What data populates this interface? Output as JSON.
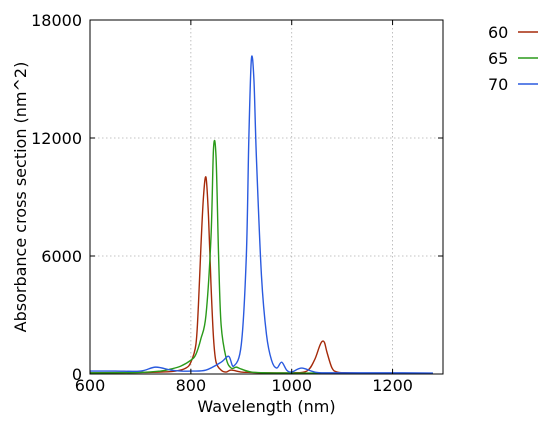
{
  "chart_data": {
    "type": "line",
    "title": "",
    "xlabel": "Wavelength (nm)",
    "ylabel": "Absorbance cross section (nm^2)",
    "xlim": [
      600,
      1300
    ],
    "ylim": [
      0,
      18000
    ],
    "xticks": [
      600,
      800,
      1000,
      1200
    ],
    "yticks": [
      0,
      6000,
      12000,
      18000
    ],
    "xtick_labels": [
      "600",
      "800",
      "1000",
      "1200"
    ],
    "ytick_labels": [
      "0",
      "6000",
      "12000",
      "18000"
    ],
    "grid": true,
    "legend_position": "outside-top-right",
    "series": [
      {
        "name": "60",
        "color": "#a52a0a",
        "x": [
          600,
          700,
          740,
          770,
          790,
          800,
          810,
          815,
          820,
          825,
          830,
          835,
          840,
          845,
          850,
          860,
          870,
          880,
          900,
          920,
          950,
          1000,
          1030,
          1045,
          1055,
          1060,
          1065,
          1070,
          1080,
          1090,
          1110,
          1150,
          1200,
          1280
        ],
        "y": [
          60,
          80,
          100,
          150,
          300,
          600,
          1500,
          3500,
          6500,
          9000,
          10000,
          8000,
          4500,
          1800,
          600,
          200,
          100,
          200,
          100,
          80,
          60,
          60,
          150,
          700,
          1400,
          1650,
          1600,
          1100,
          300,
          100,
          60,
          40,
          40,
          30
        ]
      },
      {
        "name": "65",
        "color": "#2a9a1a",
        "x": [
          600,
          700,
          740,
          760,
          780,
          800,
          810,
          820,
          830,
          840,
          845,
          850,
          855,
          860,
          870,
          880,
          890,
          900,
          920,
          950,
          1000,
          1050,
          1100,
          1200,
          1280
        ],
        "y": [
          60,
          80,
          150,
          250,
          400,
          700,
          1000,
          1800,
          3000,
          7000,
          11500,
          11000,
          6000,
          2500,
          800,
          300,
          350,
          250,
          100,
          60,
          50,
          50,
          40,
          30,
          30
        ]
      },
      {
        "name": "70",
        "color": "#2a5adf",
        "x": [
          600,
          650,
          700,
          730,
          760,
          780,
          800,
          830,
          860,
          875,
          885,
          900,
          910,
          915,
          920,
          925,
          930,
          940,
          950,
          960,
          970,
          980,
          990,
          1000,
          1020,
          1050,
          1100,
          1200,
          1280
        ],
        "y": [
          150,
          150,
          150,
          350,
          200,
          150,
          150,
          200,
          600,
          900,
          400,
          1500,
          6000,
          12000,
          16000,
          15000,
          11000,
          5000,
          2000,
          700,
          300,
          600,
          200,
          100,
          300,
          80,
          60,
          60,
          50
        ]
      }
    ]
  }
}
